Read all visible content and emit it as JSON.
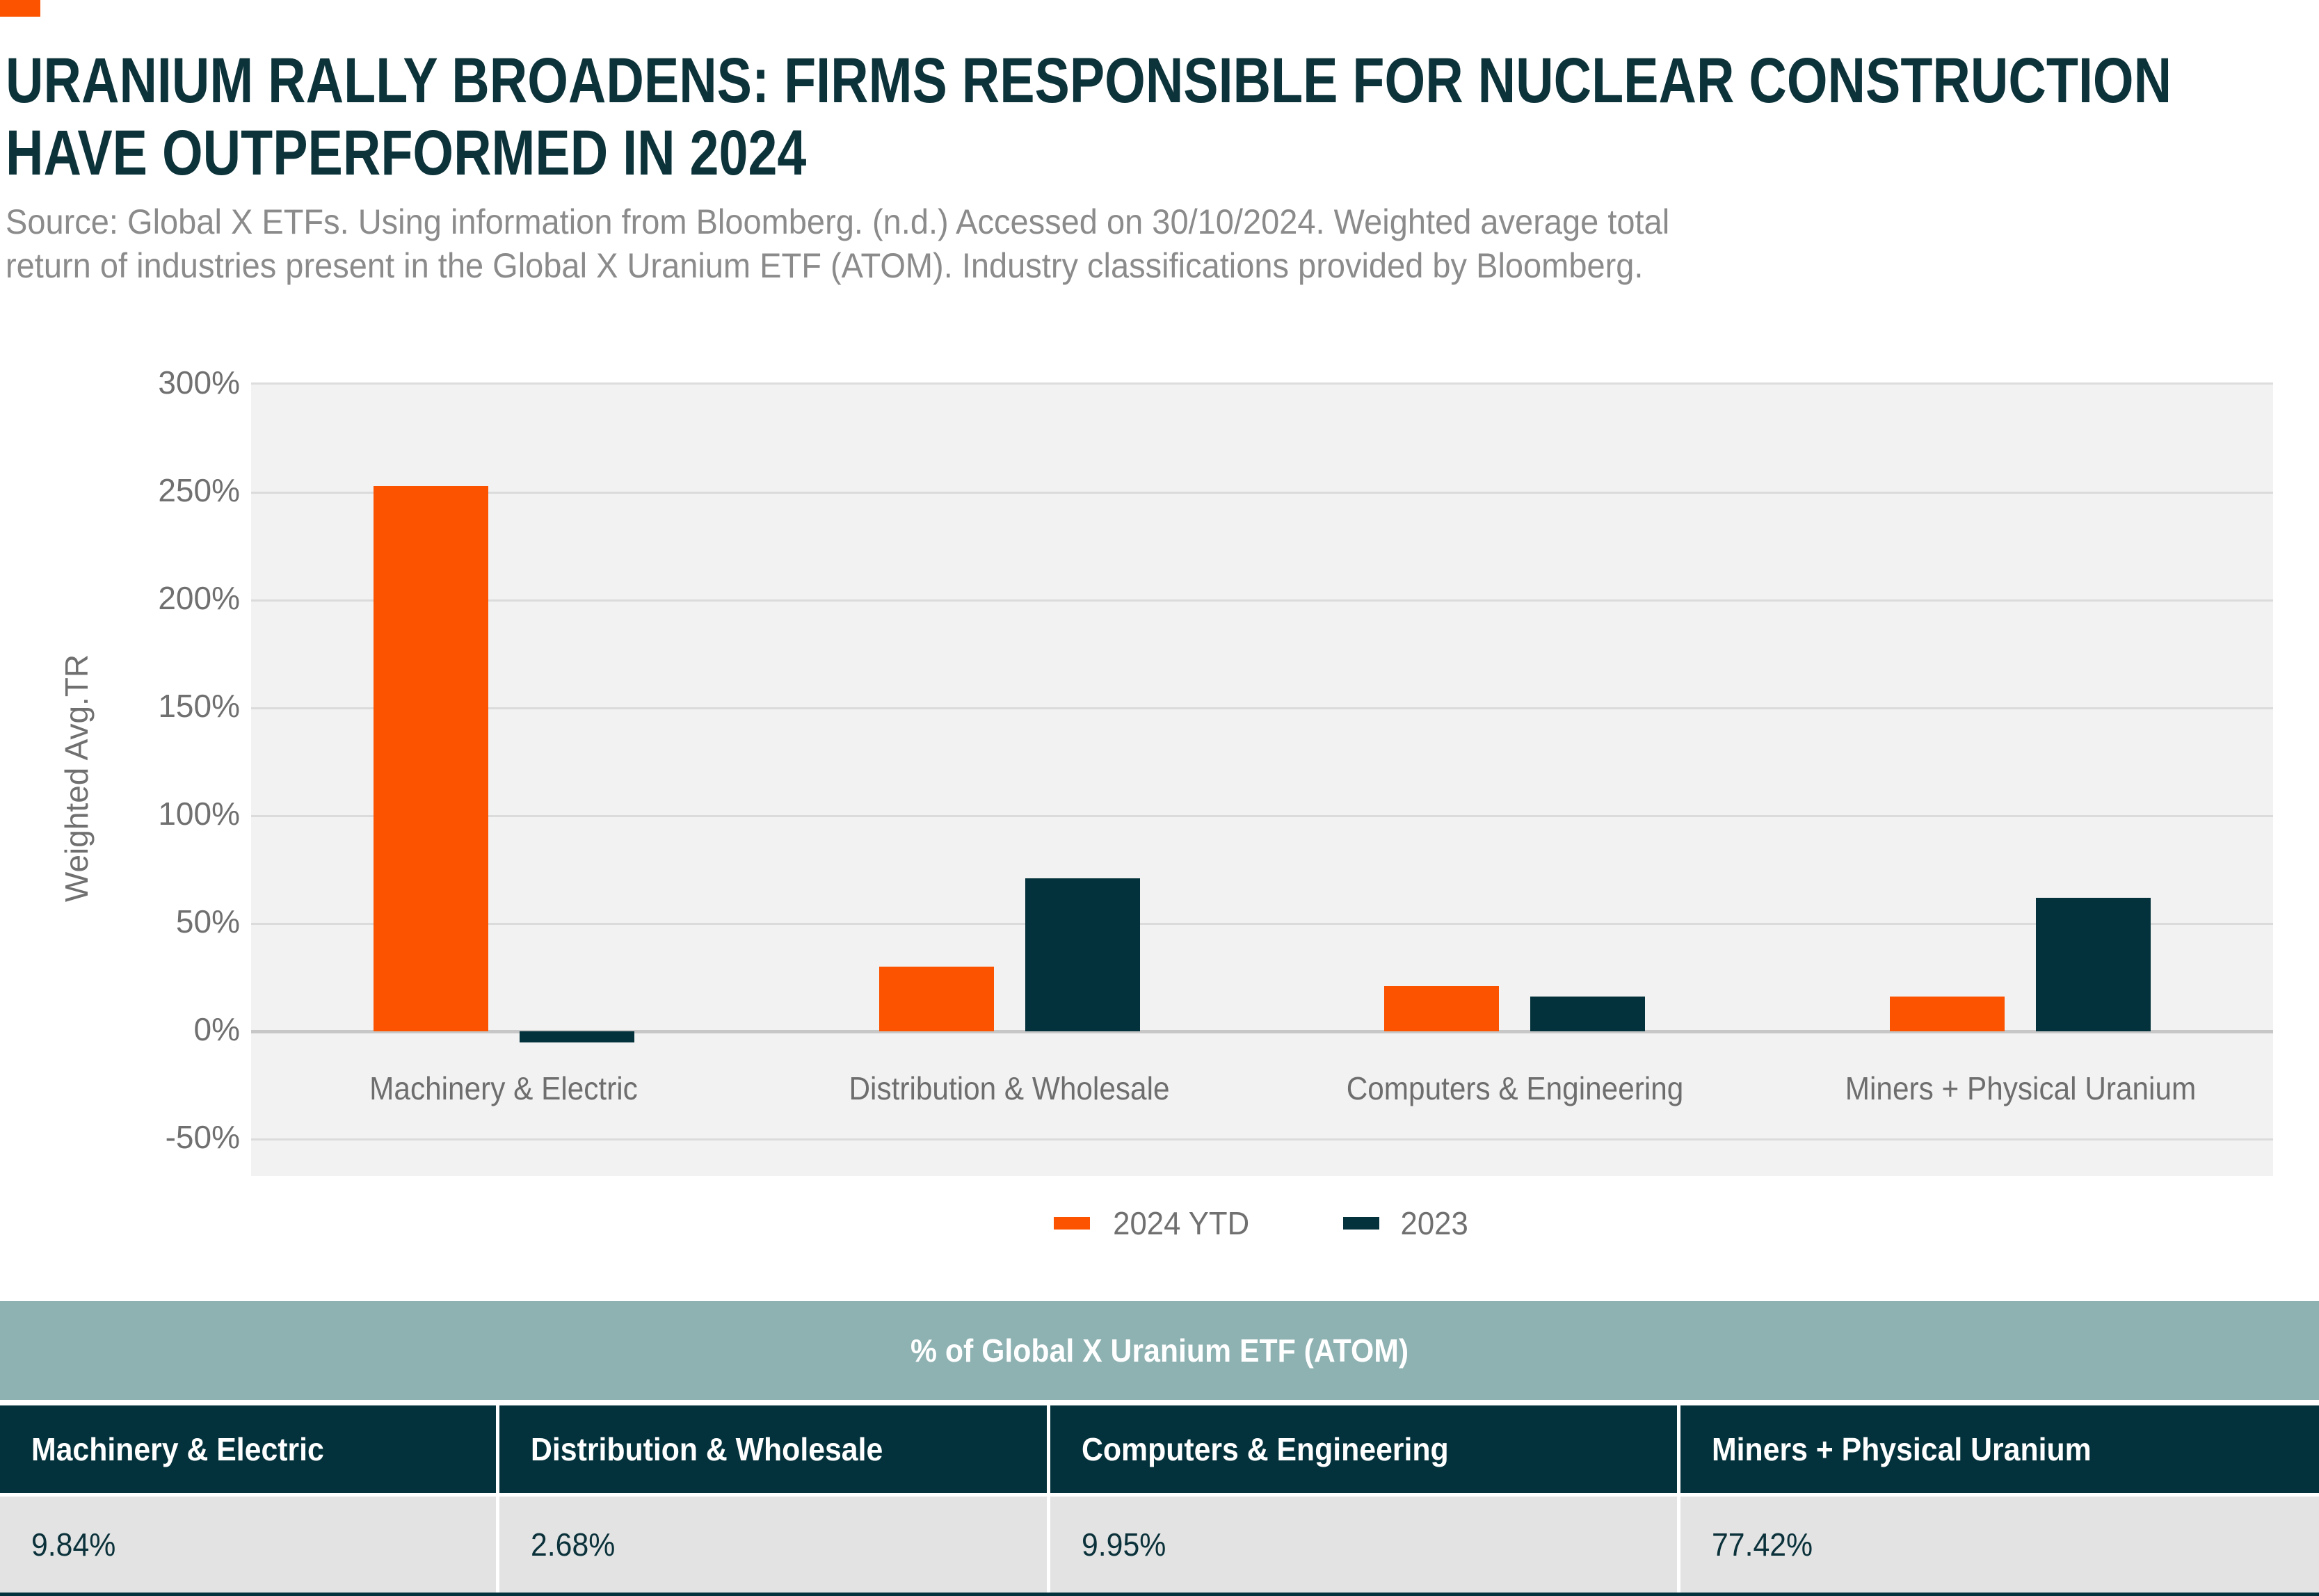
{
  "brand": {
    "accent_color": "#FB5300",
    "navy_color": "#04323C"
  },
  "header": {
    "title_line1": "URANIUM RALLY BROADENS: FIRMS RESPONSIBLE FOR NUCLEAR CONSTRUCTION",
    "title_line2": "HAVE OUTPERFORMED IN 2024",
    "source_line1": "Source: Global X ETFs. Using information from Bloomberg. (n.d.) Accessed on 30/10/2024. Weighted average total",
    "source_line2": "return of industries present in the Global X Uranium ETF (ATOM). Industry classifications provided by Bloomberg."
  },
  "chart_data": {
    "type": "bar",
    "title": "",
    "xlabel": "",
    "ylabel": "Weighted Avg.TR",
    "categories": [
      "Machinery & Electric",
      "Distribution & Wholesale",
      "Computers & Engineering",
      "Miners + Physical Uranium"
    ],
    "series": [
      {
        "name": "2024 YTD",
        "color": "#FB5300",
        "values": [
          253,
          30,
          21,
          16
        ]
      },
      {
        "name": "2023",
        "color": "#04323C",
        "values": [
          -5,
          71,
          16,
          62
        ]
      }
    ],
    "ylim": [
      -50,
      300
    ],
    "ytick_step": 50,
    "ytick_suffix": "%",
    "grid": true,
    "plot_background": "#F2F2F2",
    "legend_position": "bottom"
  },
  "legend": {
    "items": [
      {
        "label": "2024 YTD",
        "color": "#FB5300"
      },
      {
        "label": "2023",
        "color": "#04323C"
      }
    ]
  },
  "table": {
    "title": "% of Global X Uranium ETF (ATOM)",
    "columns": [
      {
        "label": "Machinery & Electric",
        "value": "9.84%"
      },
      {
        "label": "Distribution & Wholesale",
        "value": "2.68%"
      },
      {
        "label": "Computers & Engineering",
        "value": "9.95%"
      },
      {
        "label": "Miners + Physical Uranium",
        "value": "77.42%"
      }
    ]
  }
}
